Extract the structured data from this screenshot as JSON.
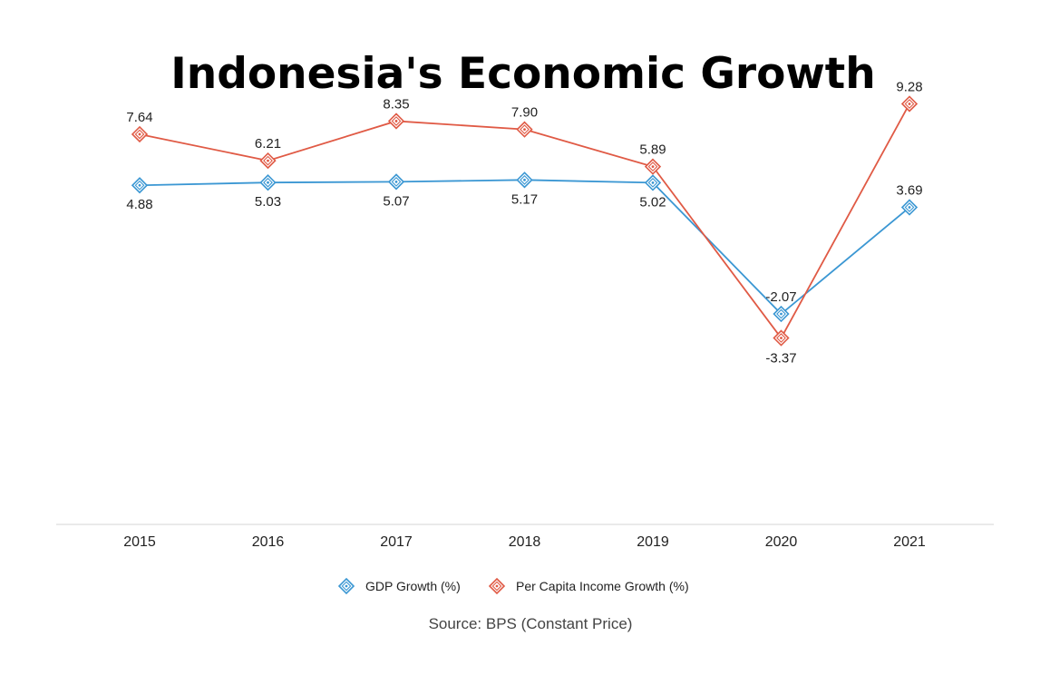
{
  "chart_data": {
    "type": "line",
    "title": "Indonesia's Economic Growth",
    "source": "Source: BPS (Constant Price)",
    "categories": [
      "2015",
      "2016",
      "2017",
      "2018",
      "2019",
      "2020",
      "2021"
    ],
    "value_labels": {
      "gdp": [
        "4.88",
        "5.03",
        "5.07",
        "5.17",
        "5.02",
        "-2.07",
        "3.69"
      ],
      "income": [
        "7.64",
        "6.21",
        "8.35",
        "7.90",
        "5.89",
        "-3.37",
        "9.28"
      ]
    },
    "series": [
      {
        "name": "GDP Growth (%)",
        "color": "#3b97d3",
        "values": [
          4.88,
          5.03,
          5.07,
          5.17,
          5.02,
          -2.07,
          3.69
        ]
      },
      {
        "name": "Per Capita Income Growth (%)",
        "color": "#e05a45",
        "values": [
          7.64,
          6.21,
          8.35,
          7.9,
          5.89,
          -3.37,
          9.28
        ]
      }
    ],
    "marker": "diamond-icon",
    "grid": false,
    "legend_position": "bottom-center"
  }
}
